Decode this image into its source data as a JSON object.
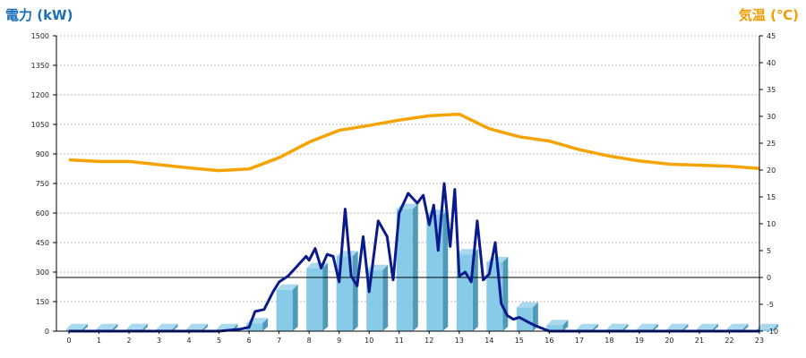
{
  "chart_data": {
    "type": "bar",
    "left_axis_title": "電力 (kW)",
    "right_axis_title": "気温 (℃)",
    "ylim_left": [
      0,
      1500
    ],
    "ylim_right": [
      -10,
      45
    ],
    "left_ticks": [
      "0",
      "150",
      "300",
      "450",
      "600",
      "750",
      "900",
      "1050",
      "1200",
      "1350",
      "1500"
    ],
    "right_ticks": [
      "-10",
      "-5",
      "0",
      "5",
      "10",
      "15",
      "20",
      "25",
      "30",
      "35",
      "40",
      "45"
    ],
    "categories": [
      "0",
      "1",
      "2",
      "3",
      "4",
      "5",
      "6",
      "7",
      "8",
      "9",
      "10",
      "11",
      "12",
      "13",
      "14",
      "15",
      "16",
      "17",
      "18",
      "19",
      "20",
      "21",
      "22",
      "23"
    ],
    "grid": true,
    "colors": {
      "bars": "#87cbe8",
      "power_line": "#0a1a8c",
      "temperature_line": "#f5a300",
      "left_title": "#1a6fb5",
      "right_title": "#f39a00"
    },
    "series": [
      {
        "axis": "left",
        "type": "bar",
        "values": [
          0,
          0,
          0,
          0,
          0,
          0,
          40,
          210,
          320,
          380,
          310,
          620,
          590,
          390,
          350,
          120,
          30,
          0,
          0,
          0,
          0,
          0,
          0,
          0
        ]
      },
      {
        "axis": "left",
        "type": "line",
        "x": [
          0,
          1,
          2,
          3,
          4,
          5,
          5.7,
          6,
          6.2,
          6.5,
          6.8,
          7,
          7.3,
          7.6,
          7.9,
          8,
          8.2,
          8.4,
          8.6,
          8.8,
          9,
          9.2,
          9.4,
          9.6,
          9.8,
          10,
          10.3,
          10.6,
          10.8,
          11,
          11.3,
          11.6,
          11.8,
          12,
          12.15,
          12.3,
          12.5,
          12.7,
          12.85,
          13,
          13.2,
          13.4,
          13.6,
          13.8,
          14,
          14.2,
          14.4,
          14.6,
          14.8,
          15,
          15.5,
          16,
          16.5,
          17,
          18,
          19,
          20,
          21,
          22,
          23
        ],
        "values": [
          0,
          0,
          0,
          0,
          0,
          0,
          10,
          20,
          100,
          110,
          200,
          250,
          280,
          330,
          380,
          360,
          420,
          320,
          390,
          380,
          250,
          620,
          280,
          230,
          480,
          200,
          560,
          480,
          260,
          600,
          700,
          650,
          690,
          540,
          640,
          410,
          750,
          430,
          720,
          280,
          300,
          250,
          560,
          260,
          290,
          450,
          140,
          80,
          60,
          70,
          30,
          0,
          0,
          0,
          0,
          0,
          0,
          0,
          0,
          0
        ]
      },
      {
        "axis": "right",
        "type": "line",
        "values": [
          21.9,
          21.6,
          21.6,
          21.0,
          20.4,
          19.9,
          20.2,
          22.3,
          25.2,
          27.4,
          28.3,
          29.3,
          30.1,
          30.4,
          27.7,
          26.2,
          25.4,
          23.8,
          22.6,
          21.7,
          21.1,
          20.9,
          20.7,
          20.3
        ]
      }
    ]
  }
}
